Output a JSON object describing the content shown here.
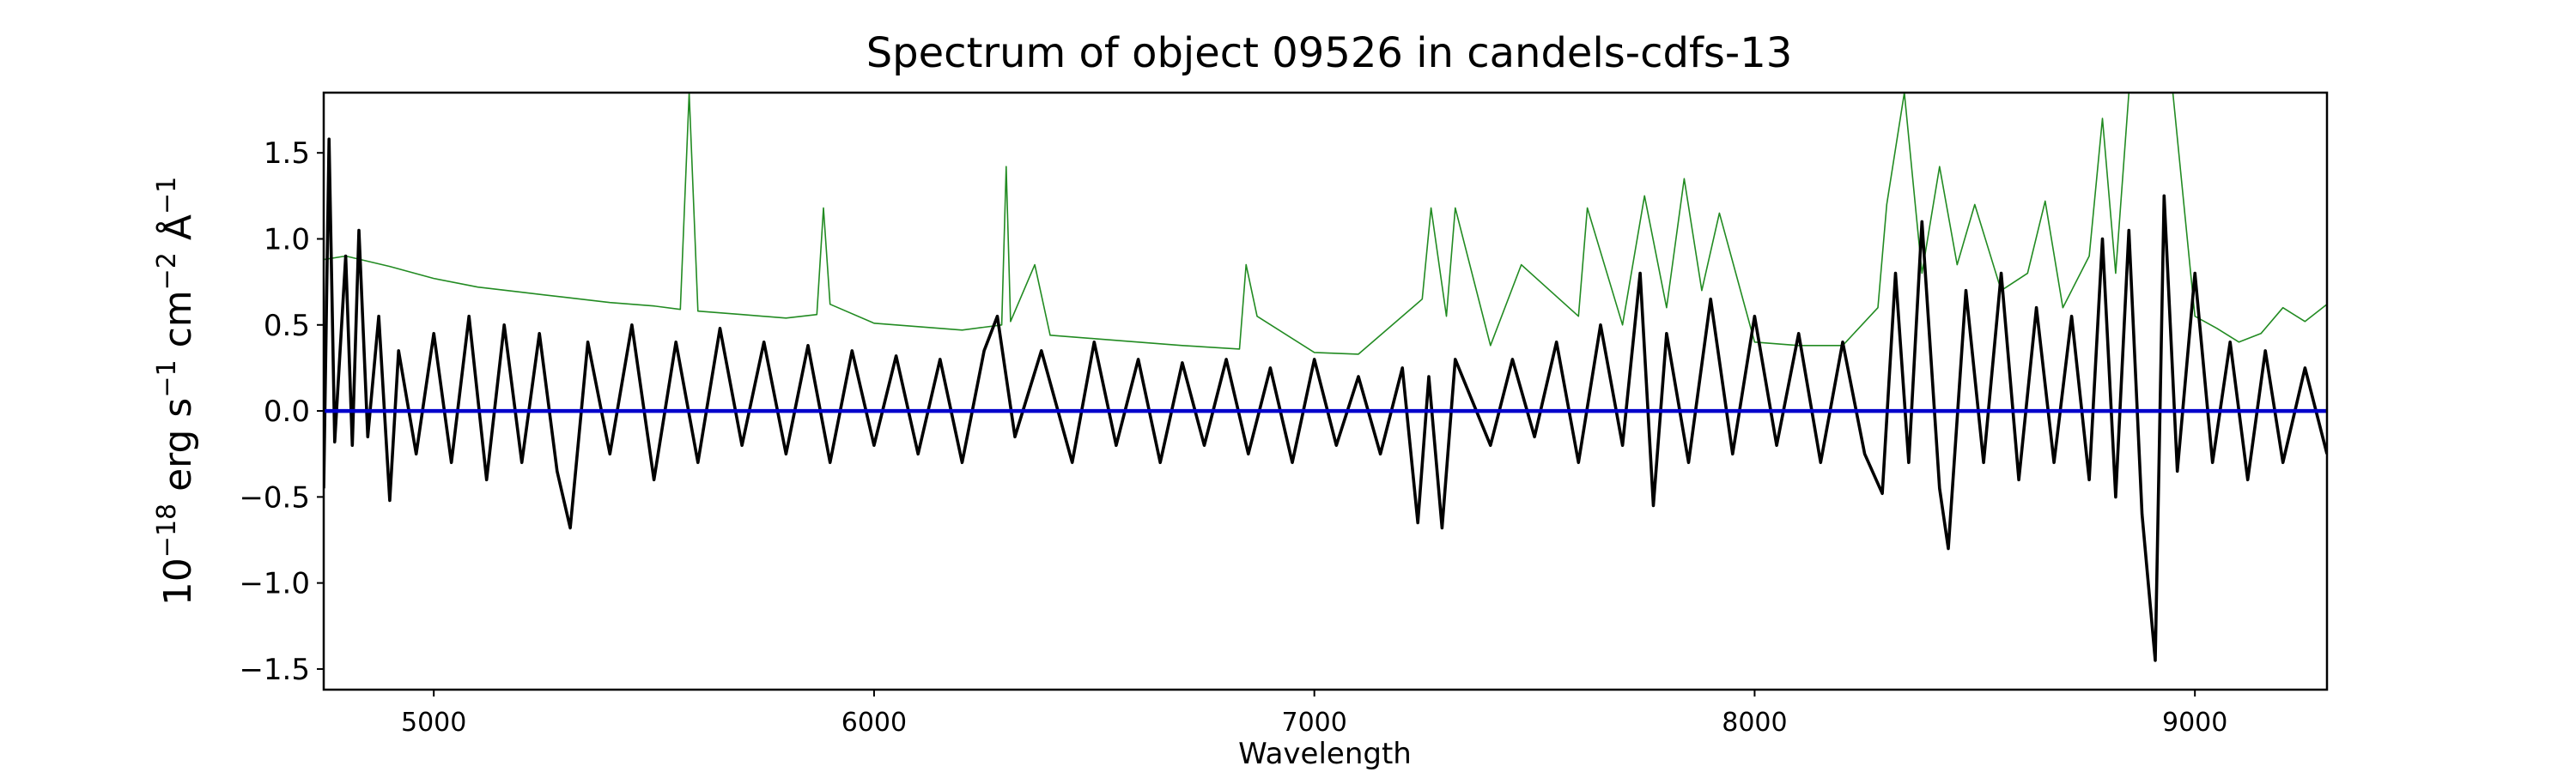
{
  "chart_data": {
    "type": "line",
    "title": "Spectrum of object 09526 in candels-cdfs-13",
    "xlabel": "Wavelength",
    "ylabel": "10^-18 erg s^-1 cm^-2 Å^-1",
    "xlim": [
      4750,
      9300
    ],
    "ylim": [
      -1.62,
      1.85
    ],
    "xticks": [
      5000,
      6000,
      7000,
      8000,
      9000
    ],
    "xtick_labels": [
      "5000",
      "6000",
      "7000",
      "8000",
      "9000"
    ],
    "yticks": [
      -1.5,
      -1.0,
      -0.5,
      0.0,
      0.5,
      1.0,
      1.5
    ],
    "ytick_labels": [
      "−1.5",
      "−1.0",
      "−0.5",
      "0.0",
      "0.5",
      "1.0",
      "1.5"
    ],
    "grid": false,
    "series": [
      {
        "color": "#228b22",
        "style": "thin",
        "points": [
          [
            4750,
            0.88
          ],
          [
            4800,
            0.9
          ],
          [
            4900,
            0.84
          ],
          [
            5000,
            0.77
          ],
          [
            5100,
            0.72
          ],
          [
            5200,
            0.69
          ],
          [
            5300,
            0.66
          ],
          [
            5400,
            0.63
          ],
          [
            5500,
            0.61
          ],
          [
            5560,
            0.59
          ],
          [
            5580,
            1.85
          ],
          [
            5600,
            0.58
          ],
          [
            5700,
            0.56
          ],
          [
            5800,
            0.54
          ],
          [
            5870,
            0.56
          ],
          [
            5885,
            1.18
          ],
          [
            5900,
            0.62
          ],
          [
            6000,
            0.51
          ],
          [
            6100,
            0.49
          ],
          [
            6200,
            0.47
          ],
          [
            6290,
            0.5
          ],
          [
            6300,
            1.42
          ],
          [
            6310,
            0.52
          ],
          [
            6365,
            0.85
          ],
          [
            6400,
            0.44
          ],
          [
            6500,
            0.42
          ],
          [
            6600,
            0.4
          ],
          [
            6700,
            0.38
          ],
          [
            6830,
            0.36
          ],
          [
            6845,
            0.85
          ],
          [
            6870,
            0.55
          ],
          [
            7000,
            0.34
          ],
          [
            7100,
            0.33
          ],
          [
            7245,
            0.65
          ],
          [
            7265,
            1.18
          ],
          [
            7300,
            0.55
          ],
          [
            7320,
            1.18
          ],
          [
            7400,
            0.38
          ],
          [
            7470,
            0.85
          ],
          [
            7600,
            0.55
          ],
          [
            7620,
            1.18
          ],
          [
            7700,
            0.5
          ],
          [
            7750,
            1.25
          ],
          [
            7800,
            0.6
          ],
          [
            7840,
            1.35
          ],
          [
            7880,
            0.7
          ],
          [
            7920,
            1.15
          ],
          [
            8000,
            0.4
          ],
          [
            8100,
            0.38
          ],
          [
            8200,
            0.38
          ],
          [
            8280,
            0.6
          ],
          [
            8300,
            1.2
          ],
          [
            8340,
            1.85
          ],
          [
            8380,
            0.8
          ],
          [
            8420,
            1.42
          ],
          [
            8460,
            0.85
          ],
          [
            8500,
            1.2
          ],
          [
            8560,
            0.7
          ],
          [
            8620,
            0.8
          ],
          [
            8660,
            1.22
          ],
          [
            8700,
            0.6
          ],
          [
            8760,
            0.9
          ],
          [
            8790,
            1.7
          ],
          [
            8820,
            0.8
          ],
          [
            8850,
            1.85
          ],
          [
            8900,
            1.85
          ],
          [
            8950,
            1.85
          ],
          [
            9000,
            0.55
          ],
          [
            9050,
            0.48
          ],
          [
            9100,
            0.4
          ],
          [
            9150,
            0.45
          ],
          [
            9200,
            0.6
          ],
          [
            9250,
            0.52
          ],
          [
            9300,
            0.62
          ]
        ]
      },
      {
        "color": "#000000",
        "style": "thick",
        "points": [
          [
            4750,
            -0.45
          ],
          [
            4762,
            1.58
          ],
          [
            4775,
            -0.18
          ],
          [
            4800,
            0.9
          ],
          [
            4815,
            -0.2
          ],
          [
            4830,
            1.05
          ],
          [
            4850,
            -0.15
          ],
          [
            4875,
            0.55
          ],
          [
            4900,
            -0.52
          ],
          [
            4920,
            0.35
          ],
          [
            4960,
            -0.25
          ],
          [
            5000,
            0.45
          ],
          [
            5040,
            -0.3
          ],
          [
            5080,
            0.55
          ],
          [
            5120,
            -0.4
          ],
          [
            5160,
            0.5
          ],
          [
            5200,
            -0.3
          ],
          [
            5240,
            0.45
          ],
          [
            5280,
            -0.35
          ],
          [
            5310,
            -0.68
          ],
          [
            5350,
            0.4
          ],
          [
            5400,
            -0.25
          ],
          [
            5450,
            0.5
          ],
          [
            5500,
            -0.4
          ],
          [
            5550,
            0.4
          ],
          [
            5600,
            -0.3
          ],
          [
            5650,
            0.48
          ],
          [
            5700,
            -0.2
          ],
          [
            5750,
            0.4
          ],
          [
            5800,
            -0.25
          ],
          [
            5850,
            0.38
          ],
          [
            5900,
            -0.3
          ],
          [
            5950,
            0.35
          ],
          [
            6000,
            -0.2
          ],
          [
            6050,
            0.32
          ],
          [
            6100,
            -0.25
          ],
          [
            6150,
            0.3
          ],
          [
            6200,
            -0.3
          ],
          [
            6250,
            0.35
          ],
          [
            6280,
            0.55
          ],
          [
            6320,
            -0.15
          ],
          [
            6380,
            0.35
          ],
          [
            6450,
            -0.3
          ],
          [
            6500,
            0.4
          ],
          [
            6550,
            -0.2
          ],
          [
            6600,
            0.3
          ],
          [
            6650,
            -0.3
          ],
          [
            6700,
            0.28
          ],
          [
            6750,
            -0.2
          ],
          [
            6800,
            0.3
          ],
          [
            6850,
            -0.25
          ],
          [
            6900,
            0.25
          ],
          [
            6950,
            -0.3
          ],
          [
            7000,
            0.3
          ],
          [
            7050,
            -0.2
          ],
          [
            7100,
            0.2
          ],
          [
            7150,
            -0.25
          ],
          [
            7200,
            0.25
          ],
          [
            7235,
            -0.65
          ],
          [
            7260,
            0.2
          ],
          [
            7290,
            -0.68
          ],
          [
            7320,
            0.3
          ],
          [
            7400,
            -0.2
          ],
          [
            7450,
            0.3
          ],
          [
            7500,
            -0.15
          ],
          [
            7550,
            0.4
          ],
          [
            7600,
            -0.3
          ],
          [
            7650,
            0.5
          ],
          [
            7700,
            -0.2
          ],
          [
            7740,
            0.8
          ],
          [
            7770,
            -0.55
          ],
          [
            7800,
            0.45
          ],
          [
            7850,
            -0.3
          ],
          [
            7900,
            0.65
          ],
          [
            7950,
            -0.25
          ],
          [
            8000,
            0.55
          ],
          [
            8050,
            -0.2
          ],
          [
            8100,
            0.45
          ],
          [
            8150,
            -0.3
          ],
          [
            8200,
            0.4
          ],
          [
            8250,
            -0.25
          ],
          [
            8290,
            -0.48
          ],
          [
            8320,
            0.8
          ],
          [
            8350,
            -0.3
          ],
          [
            8380,
            1.1
          ],
          [
            8420,
            -0.45
          ],
          [
            8440,
            -0.8
          ],
          [
            8480,
            0.7
          ],
          [
            8520,
            -0.3
          ],
          [
            8560,
            0.8
          ],
          [
            8600,
            -0.4
          ],
          [
            8640,
            0.6
          ],
          [
            8680,
            -0.3
          ],
          [
            8720,
            0.55
          ],
          [
            8760,
            -0.4
          ],
          [
            8790,
            1.0
          ],
          [
            8820,
            -0.5
          ],
          [
            8850,
            1.05
          ],
          [
            8880,
            -0.6
          ],
          [
            8910,
            -1.45
          ],
          [
            8930,
            1.25
          ],
          [
            8960,
            -0.35
          ],
          [
            9000,
            0.8
          ],
          [
            9040,
            -0.3
          ],
          [
            9080,
            0.4
          ],
          [
            9120,
            -0.4
          ],
          [
            9160,
            0.35
          ],
          [
            9200,
            -0.3
          ],
          [
            9250,
            0.25
          ],
          [
            9300,
            -0.25
          ]
        ]
      },
      {
        "color": "#0000cc",
        "style": "baseline",
        "points": [
          [
            4750,
            0.0
          ],
          [
            9300,
            0.0
          ]
        ]
      }
    ]
  }
}
